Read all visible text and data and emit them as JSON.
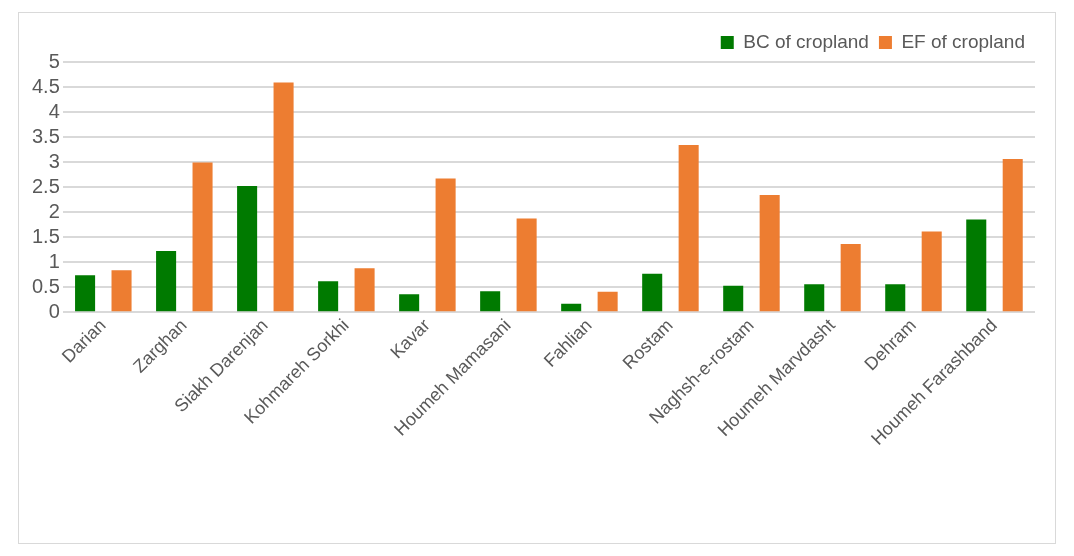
{
  "chart_data": {
    "type": "bar",
    "categories": [
      "Darian",
      "Zarghan",
      "Siakh Darenjan",
      "Kohmareh Sorkhi",
      "Kavar",
      "Houmeh Mamasani",
      "Fahlian",
      "Rostam",
      "Naghsh-e-rostam",
      "Houmeh Marvdasht",
      "Dehram",
      "Houmeh Farashband"
    ],
    "series": [
      {
        "name": "BC of cropland",
        "color": "#007a00",
        "values": [
          0.74,
          1.22,
          2.52,
          0.62,
          0.36,
          0.42,
          0.17,
          0.77,
          0.53,
          0.56,
          0.56,
          1.85
        ]
      },
      {
        "name": "EF of cropland",
        "color": "#ed7d31",
        "values": [
          0.84,
          2.99,
          4.59,
          0.88,
          2.67,
          1.87,
          0.41,
          3.34,
          2.34,
          1.36,
          1.61,
          3.06
        ]
      }
    ],
    "ylim": [
      0,
      5
    ],
    "yticks": [
      0,
      0.5,
      1,
      1.5,
      2,
      2.5,
      3,
      3.5,
      4,
      4.5,
      5
    ],
    "grid": "y",
    "legend": "top right"
  }
}
